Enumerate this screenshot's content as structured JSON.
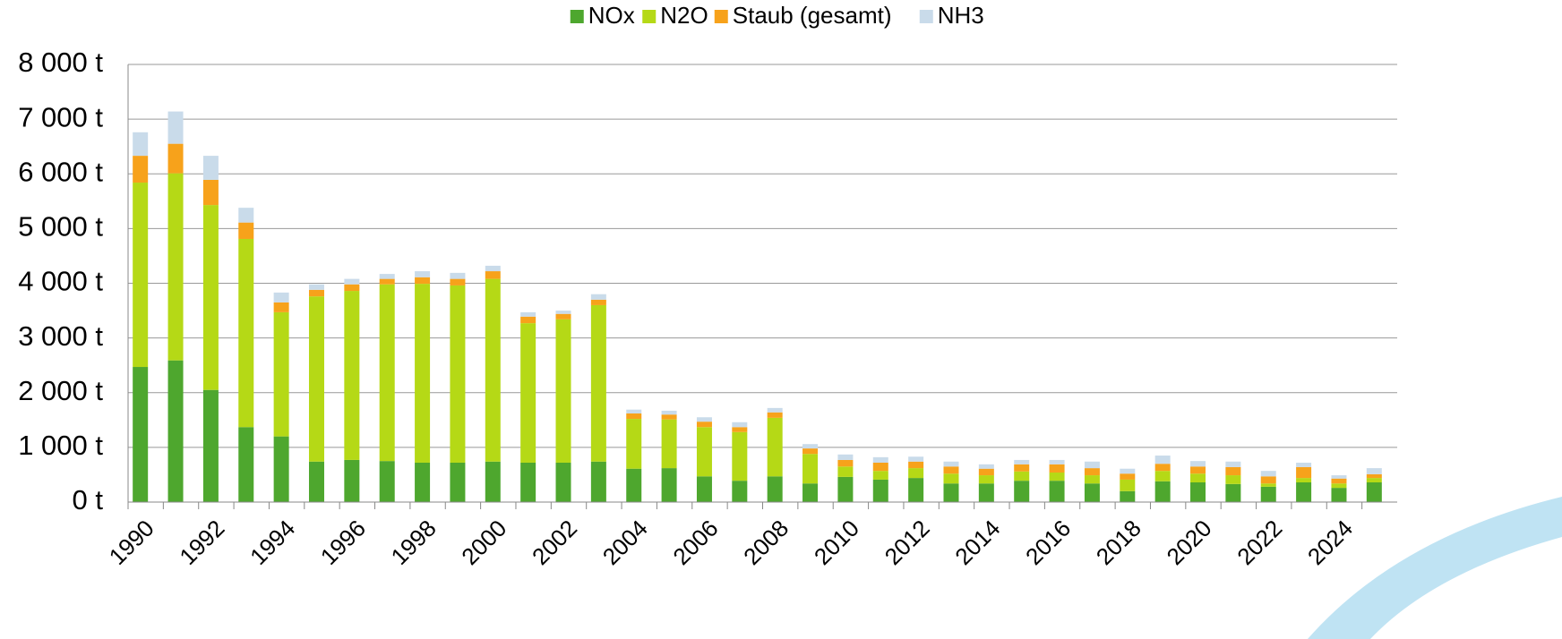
{
  "chart_data": {
    "type": "stacked_bar",
    "categories": [
      "1990",
      null,
      "1992",
      null,
      "1994",
      null,
      "1996",
      null,
      "1998",
      null,
      "2000",
      null,
      "2002",
      null,
      "2004",
      null,
      "2006",
      null,
      "2008",
      null,
      "2010",
      null,
      "2012",
      null,
      "2014",
      null,
      "2016",
      null,
      "2018",
      null,
      "2020",
      null,
      "2022",
      null,
      "2024",
      null
    ],
    "series": [
      {
        "name": "NOx",
        "color": "#4ea72e",
        "values": [
          2470,
          2590,
          2050,
          1370,
          1200,
          740,
          770,
          750,
          720,
          720,
          740,
          720,
          720,
          740,
          610,
          620,
          470,
          390,
          470,
          340,
          460,
          410,
          440,
          340,
          340,
          390,
          390,
          340,
          200,
          380,
          360,
          330,
          280,
          360,
          260,
          360
        ]
      },
      {
        "name": "N2O",
        "color": "#b5d916",
        "values": [
          3370,
          3420,
          3380,
          3440,
          2270,
          3020,
          3090,
          3230,
          3270,
          3240,
          3340,
          2550,
          2620,
          2860,
          910,
          890,
          900,
          890,
          1070,
          540,
          190,
          160,
          180,
          180,
          150,
          170,
          150,
          150,
          210,
          190,
          160,
          160,
          60,
          80,
          80,
          80
        ]
      },
      {
        "name": "Staub (gesamt)",
        "color": "#f7a21b",
        "values": [
          490,
          540,
          460,
          300,
          180,
          120,
          120,
          100,
          120,
          120,
          140,
          120,
          100,
          100,
          100,
          90,
          100,
          90,
          100,
          100,
          120,
          150,
          120,
          130,
          120,
          130,
          150,
          130,
          110,
          130,
          130,
          150,
          130,
          200,
          90,
          70
        ]
      },
      {
        "name": "NH3",
        "color": "#c9dbea",
        "values": [
          430,
          590,
          440,
          270,
          180,
          100,
          100,
          90,
          110,
          110,
          100,
          80,
          60,
          100,
          70,
          70,
          80,
          90,
          80,
          80,
          100,
          100,
          90,
          90,
          80,
          80,
          80,
          120,
          90,
          150,
          100,
          100,
          100,
          80,
          60,
          110
        ]
      }
    ],
    "ylim": [
      0,
      8000
    ],
    "yticks": [
      {
        "value": 0,
        "label": "0 t"
      },
      {
        "value": 1000,
        "label": "1 000 t"
      },
      {
        "value": 2000,
        "label": "2 000 t"
      },
      {
        "value": 3000,
        "label": "3 000 t"
      },
      {
        "value": 4000,
        "label": "4 000 t"
      },
      {
        "value": 5000,
        "label": "5 000 t"
      },
      {
        "value": 6000,
        "label": "6 000 t"
      },
      {
        "value": 7000,
        "label": "7 000 t"
      },
      {
        "value": 8000,
        "label": "8 000 t"
      }
    ],
    "grid": true,
    "legend": "top"
  }
}
